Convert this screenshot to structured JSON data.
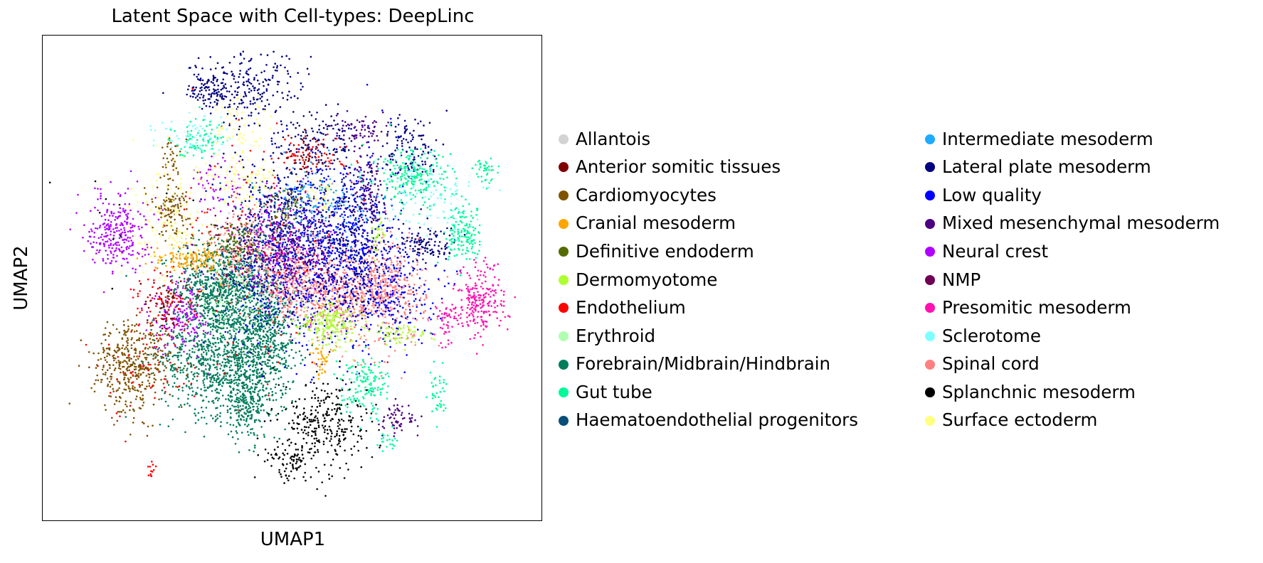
{
  "chart_data": {
    "type": "scatter",
    "title": "Latent Space with Cell-types: DeepLinc",
    "xlabel": "UMAP1",
    "ylabel": "UMAP2",
    "grid": false,
    "xticks": [],
    "yticks": [],
    "legend_position": "right",
    "xlim": [
      0,
      1
    ],
    "ylim": [
      0,
      1
    ],
    "point_size": 2,
    "categories": [
      {
        "name": "Allantois",
        "color": "#d3d3d3"
      },
      {
        "name": "Anterior somitic tissues",
        "color": "#800000"
      },
      {
        "name": "Cardiomyocytes",
        "color": "#7f5200"
      },
      {
        "name": "Cranial mesoderm",
        "color": "#ffa500"
      },
      {
        "name": "Definitive endoderm",
        "color": "#556b00"
      },
      {
        "name": "Dermomyotome",
        "color": "#adff2f"
      },
      {
        "name": "Endothelium",
        "color": "#ff0000"
      },
      {
        "name": "Erythroid",
        "color": "#b0ffb0"
      },
      {
        "name": "Forebrain/Midbrain/Hindbrain",
        "color": "#007c5c"
      },
      {
        "name": "Gut tube",
        "color": "#00fa9a"
      },
      {
        "name": "Haematoendothelial progenitors",
        "color": "#0a4f7a"
      },
      {
        "name": "Intermediate mesoderm",
        "color": "#1eaaff"
      },
      {
        "name": "Lateral plate mesoderm",
        "color": "#000080"
      },
      {
        "name": "Low quality",
        "color": "#0000ff"
      },
      {
        "name": "Mixed mesenchymal mesoderm",
        "color": "#4b0082"
      },
      {
        "name": "Neural crest",
        "color": "#b000ff"
      },
      {
        "name": "NMP",
        "color": "#6f0055"
      },
      {
        "name": "Presomitic mesoderm",
        "color": "#ff10b0"
      },
      {
        "name": "Sclerotome",
        "color": "#80ffff"
      },
      {
        "name": "Spinal cord",
        "color": "#ff8080"
      },
      {
        "name": "Splanchnic mesoderm",
        "color": "#000000"
      },
      {
        "name": "Surface ectoderm",
        "color": "#ffff80"
      }
    ],
    "clusters": [
      {
        "category": "Forebrain/Midbrain/Hindbrain",
        "cx": 0.36,
        "cy": 0.48,
        "sx": 0.05,
        "sy": 0.05,
        "n": 900
      },
      {
        "category": "Forebrain/Midbrain/Hindbrain",
        "cx": 0.35,
        "cy": 0.33,
        "sx": 0.06,
        "sy": 0.06,
        "n": 900
      },
      {
        "category": "Forebrain/Midbrain/Hindbrain",
        "cx": 0.45,
        "cy": 0.38,
        "sx": 0.03,
        "sy": 0.06,
        "n": 500
      },
      {
        "category": "Forebrain/Midbrain/Hindbrain",
        "cx": 0.41,
        "cy": 0.23,
        "sx": 0.03,
        "sy": 0.04,
        "n": 250
      },
      {
        "category": "Spinal cord",
        "cx": 0.51,
        "cy": 0.49,
        "sx": 0.05,
        "sy": 0.04,
        "n": 400
      },
      {
        "category": "Spinal cord",
        "cx": 0.62,
        "cy": 0.46,
        "sx": 0.05,
        "sy": 0.04,
        "n": 400
      },
      {
        "category": "Spinal cord",
        "cx": 0.7,
        "cy": 0.48,
        "sx": 0.04,
        "sy": 0.06,
        "n": 350
      },
      {
        "category": "Spinal cord",
        "cx": 0.41,
        "cy": 0.56,
        "sx": 0.04,
        "sy": 0.04,
        "n": 200
      },
      {
        "category": "Low quality",
        "cx": 0.5,
        "cy": 0.54,
        "sx": 0.07,
        "sy": 0.09,
        "n": 600
      },
      {
        "category": "Low quality",
        "cx": 0.62,
        "cy": 0.58,
        "sx": 0.05,
        "sy": 0.1,
        "n": 500
      },
      {
        "category": "Low quality",
        "cx": 0.7,
        "cy": 0.47,
        "sx": 0.05,
        "sy": 0.06,
        "n": 250
      },
      {
        "category": "Lateral plate mesoderm",
        "cx": 0.48,
        "cy": 0.62,
        "sx": 0.06,
        "sy": 0.1,
        "n": 350
      },
      {
        "category": "Lateral plate mesoderm",
        "cx": 0.41,
        "cy": 0.9,
        "sx": 0.06,
        "sy": 0.04,
        "n": 220
      },
      {
        "category": "Lateral plate mesoderm",
        "cx": 0.33,
        "cy": 0.9,
        "sx": 0.02,
        "sy": 0.02,
        "n": 100
      },
      {
        "category": "Lateral plate mesoderm",
        "cx": 0.75,
        "cy": 0.77,
        "sx": 0.03,
        "sy": 0.04,
        "n": 130
      },
      {
        "category": "Lateral plate mesoderm",
        "cx": 0.78,
        "cy": 0.57,
        "sx": 0.03,
        "sy": 0.02,
        "n": 110
      },
      {
        "category": "Lateral plate mesoderm",
        "cx": 0.57,
        "cy": 0.79,
        "sx": 0.04,
        "sy": 0.03,
        "n": 100
      },
      {
        "category": "Lateral plate mesoderm",
        "cx": 0.63,
        "cy": 0.58,
        "sx": 0.03,
        "sy": 0.08,
        "n": 200
      },
      {
        "category": "Mixed mesenchymal mesoderm",
        "cx": 0.66,
        "cy": 0.68,
        "sx": 0.015,
        "sy": 0.04,
        "n": 120
      },
      {
        "category": "Mixed mesenchymal mesoderm",
        "cx": 0.64,
        "cy": 0.81,
        "sx": 0.03,
        "sy": 0.015,
        "n": 70
      },
      {
        "category": "Mixed mesenchymal mesoderm",
        "cx": 0.72,
        "cy": 0.2,
        "sx": 0.02,
        "sy": 0.02,
        "n": 60
      },
      {
        "category": "Mixed mesenchymal mesoderm",
        "cx": 0.53,
        "cy": 0.55,
        "sx": 0.04,
        "sy": 0.05,
        "n": 150
      },
      {
        "category": "Neural crest",
        "cx": 0.14,
        "cy": 0.6,
        "sx": 0.03,
        "sy": 0.04,
        "n": 280
      },
      {
        "category": "Neural crest",
        "cx": 0.27,
        "cy": 0.42,
        "sx": 0.03,
        "sy": 0.04,
        "n": 180
      },
      {
        "category": "Neural crest",
        "cx": 0.48,
        "cy": 0.57,
        "sx": 0.05,
        "sy": 0.06,
        "n": 180
      },
      {
        "category": "Neural crest",
        "cx": 0.35,
        "cy": 0.7,
        "sx": 0.03,
        "sy": 0.03,
        "n": 60
      },
      {
        "category": "Cardiomyocytes",
        "cx": 0.17,
        "cy": 0.31,
        "sx": 0.04,
        "sy": 0.05,
        "n": 420
      },
      {
        "category": "Cardiomyocytes",
        "cx": 0.25,
        "cy": 0.65,
        "sx": 0.02,
        "sy": 0.03,
        "n": 120
      },
      {
        "category": "Cardiomyocytes",
        "cx": 0.25,
        "cy": 0.76,
        "sx": 0.01,
        "sy": 0.02,
        "n": 30
      },
      {
        "category": "Gut tube",
        "cx": 0.75,
        "cy": 0.71,
        "sx": 0.04,
        "sy": 0.03,
        "n": 230
      },
      {
        "category": "Gut tube",
        "cx": 0.86,
        "cy": 0.59,
        "sx": 0.02,
        "sy": 0.03,
        "n": 150
      },
      {
        "category": "Gut tube",
        "cx": 0.65,
        "cy": 0.27,
        "sx": 0.025,
        "sy": 0.03,
        "n": 150
      },
      {
        "category": "Gut tube",
        "cx": 0.31,
        "cy": 0.8,
        "sx": 0.03,
        "sy": 0.02,
        "n": 80
      },
      {
        "category": "Gut tube",
        "cx": 0.9,
        "cy": 0.73,
        "sx": 0.01,
        "sy": 0.015,
        "n": 40
      },
      {
        "category": "Gut tube",
        "cx": 0.8,
        "cy": 0.25,
        "sx": 0.01,
        "sy": 0.03,
        "n": 40
      },
      {
        "category": "Gut tube",
        "cx": 0.7,
        "cy": 0.15,
        "sx": 0.01,
        "sy": 0.01,
        "n": 20
      },
      {
        "category": "Presomitic mesoderm",
        "cx": 0.89,
        "cy": 0.45,
        "sx": 0.025,
        "sy": 0.04,
        "n": 230
      },
      {
        "category": "Presomitic mesoderm",
        "cx": 0.82,
        "cy": 0.4,
        "sx": 0.015,
        "sy": 0.02,
        "n": 50
      },
      {
        "category": "Splanchnic mesoderm",
        "cx": 0.57,
        "cy": 0.19,
        "sx": 0.045,
        "sy": 0.05,
        "n": 300
      },
      {
        "category": "Splanchnic mesoderm",
        "cx": 0.5,
        "cy": 0.11,
        "sx": 0.03,
        "sy": 0.02,
        "n": 80
      },
      {
        "category": "Splanchnic mesoderm",
        "cx": 0.15,
        "cy": 0.63,
        "sx": 0.05,
        "sy": 0.05,
        "n": 10
      },
      {
        "category": "Endothelium",
        "cx": 0.24,
        "cy": 0.45,
        "sx": 0.04,
        "sy": 0.04,
        "n": 80
      },
      {
        "category": "Endothelium",
        "cx": 0.45,
        "cy": 0.55,
        "sx": 0.1,
        "sy": 0.12,
        "n": 160
      },
      {
        "category": "Endothelium",
        "cx": 0.54,
        "cy": 0.76,
        "sx": 0.04,
        "sy": 0.02,
        "n": 60
      },
      {
        "category": "Endothelium",
        "cx": 0.21,
        "cy": 0.09,
        "sx": 0.005,
        "sy": 0.008,
        "n": 12
      },
      {
        "category": "Endothelium",
        "cx": 0.2,
        "cy": 0.3,
        "sx": 0.04,
        "sy": 0.04,
        "n": 50
      },
      {
        "category": "Cranial mesoderm",
        "cx": 0.3,
        "cy": 0.54,
        "sx": 0.04,
        "sy": 0.015,
        "n": 150
      },
      {
        "category": "Cranial mesoderm",
        "cx": 0.56,
        "cy": 0.33,
        "sx": 0.01,
        "sy": 0.02,
        "n": 40
      },
      {
        "category": "Dermomyotome",
        "cx": 0.58,
        "cy": 0.4,
        "sx": 0.03,
        "sy": 0.025,
        "n": 200
      },
      {
        "category": "Dermomyotome",
        "cx": 0.72,
        "cy": 0.38,
        "sx": 0.03,
        "sy": 0.01,
        "n": 60
      },
      {
        "category": "Dermomyotome",
        "cx": 0.68,
        "cy": 0.59,
        "sx": 0.01,
        "sy": 0.02,
        "n": 30
      },
      {
        "category": "Surface ectoderm",
        "cx": 0.25,
        "cy": 0.62,
        "sx": 0.04,
        "sy": 0.06,
        "n": 150
      },
      {
        "category": "Surface ectoderm",
        "cx": 0.41,
        "cy": 0.71,
        "sx": 0.04,
        "sy": 0.03,
        "n": 100
      },
      {
        "category": "Surface ectoderm",
        "cx": 0.56,
        "cy": 0.67,
        "sx": 0.02,
        "sy": 0.02,
        "n": 50
      },
      {
        "category": "Surface ectoderm",
        "cx": 0.39,
        "cy": 0.82,
        "sx": 0.03,
        "sy": 0.03,
        "n": 60
      },
      {
        "category": "Definitive endoderm",
        "cx": 0.39,
        "cy": 0.58,
        "sx": 0.04,
        "sy": 0.02,
        "n": 100
      },
      {
        "category": "Definitive endoderm",
        "cx": 0.49,
        "cy": 0.65,
        "sx": 0.02,
        "sy": 0.02,
        "n": 50
      },
      {
        "category": "Sclerotome",
        "cx": 0.78,
        "cy": 0.67,
        "sx": 0.05,
        "sy": 0.04,
        "n": 100
      },
      {
        "category": "Sclerotome",
        "cx": 0.3,
        "cy": 0.8,
        "sx": 0.04,
        "sy": 0.02,
        "n": 60
      },
      {
        "category": "Intermediate mesoderm",
        "cx": 0.56,
        "cy": 0.66,
        "sx": 0.06,
        "sy": 0.04,
        "n": 120
      },
      {
        "category": "Haematoendothelial progenitors",
        "cx": 0.45,
        "cy": 0.6,
        "sx": 0.05,
        "sy": 0.06,
        "n": 100
      },
      {
        "category": "Erythroid",
        "cx": 0.39,
        "cy": 0.46,
        "sx": 0.05,
        "sy": 0.05,
        "n": 80
      },
      {
        "category": "NMP",
        "cx": 0.42,
        "cy": 0.57,
        "sx": 0.06,
        "sy": 0.05,
        "n": 80
      },
      {
        "category": "Anterior somitic tissues",
        "cx": 0.24,
        "cy": 0.45,
        "sx": 0.02,
        "sy": 0.03,
        "n": 50
      },
      {
        "category": "Anterior somitic tissues",
        "cx": 0.53,
        "cy": 0.76,
        "sx": 0.03,
        "sy": 0.02,
        "n": 40
      },
      {
        "category": "Allantois",
        "cx": 0.47,
        "cy": 0.5,
        "sx": 0.08,
        "sy": 0.08,
        "n": 60
      }
    ]
  }
}
